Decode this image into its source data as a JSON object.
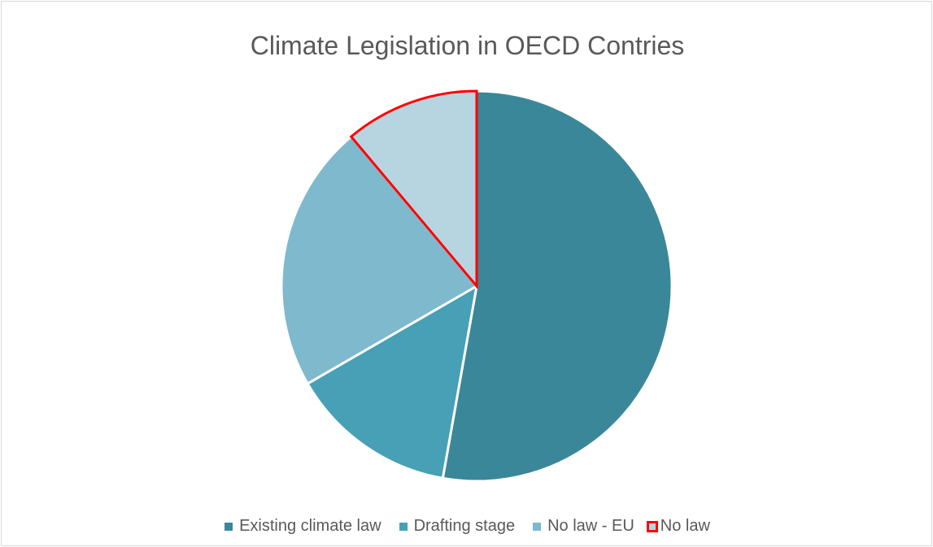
{
  "chart_data": {
    "type": "pie",
    "title": "Climate Legislation in OECD Contries",
    "series": [
      {
        "name": "Existing climate law",
        "value": 19,
        "color": "#3A8799"
      },
      {
        "name": "Drafting stage",
        "value": 5,
        "color": "#47A0B5"
      },
      {
        "name": "No law - EU",
        "value": 8,
        "color": "#7EB9CE"
      },
      {
        "name": "No law",
        "value": 4,
        "color": "#B7D5E0",
        "outline": "#ff0000"
      }
    ],
    "start_angle_deg": 0,
    "direction": "clockwise",
    "legend_position": "bottom",
    "data_labels": false
  }
}
